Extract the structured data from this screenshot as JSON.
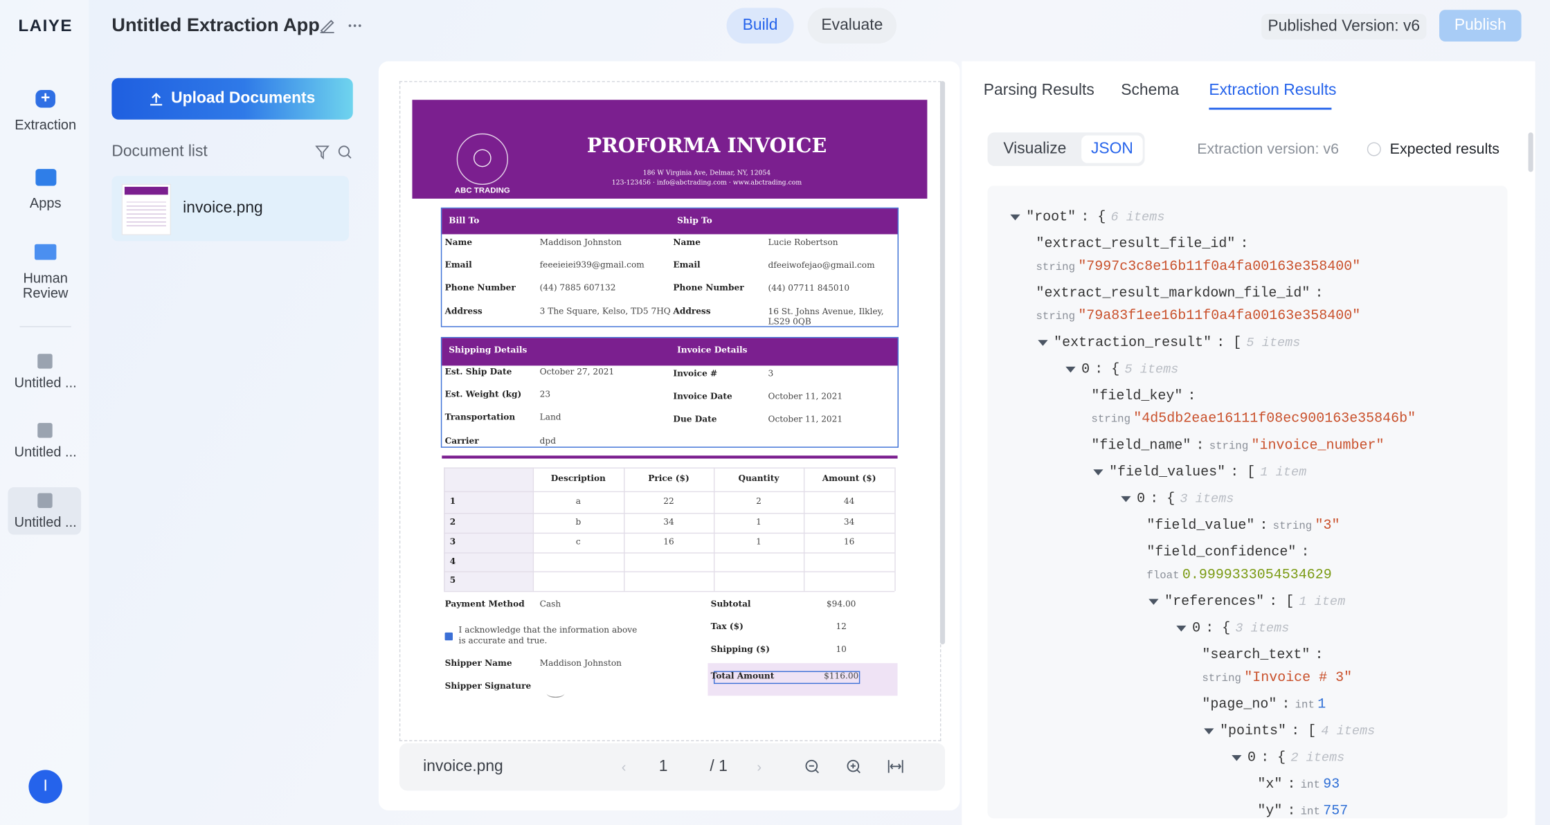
{
  "header": {
    "logo": "LAIYE",
    "app_title": "Untitled Extraction App",
    "tabs": [
      "Build",
      "Evaluate"
    ],
    "published_version": "Published Version: v6",
    "publish": "Publish"
  },
  "sidebar": {
    "items": [
      "Extraction",
      "Apps",
      "Human Review"
    ],
    "recent": [
      "Untitled ...",
      "Untitled ...",
      "Untitled ..."
    ],
    "avatar": "I"
  },
  "documents": {
    "upload": "Upload Documents",
    "list_title": "Document list",
    "files": [
      "invoice.png"
    ]
  },
  "viewer": {
    "file_name": "invoice.png",
    "page": "1",
    "total": "/ 1"
  },
  "invoice": {
    "company": "ABC TRADING",
    "title": "PROFORMA INVOICE",
    "address": "186 W Virginia Ave, Delmar, NY, 12054",
    "contact": "123-123456 · info@abctrading.com · www.abctrading.com",
    "bill_to": {
      "heading": "Bill To",
      "rows": [
        [
          "Name",
          "Maddison Johnston"
        ],
        [
          "Email",
          "feeeieiei939@gmail.com"
        ],
        [
          "Phone Number",
          "(44) 7885 607132"
        ],
        [
          "Address",
          "3 The Square, Kelso, TD5 7HQ"
        ]
      ]
    },
    "ship_to": {
      "heading": "Ship To",
      "rows": [
        [
          "Name",
          "Lucie Robertson"
        ],
        [
          "Email",
          "dfeeiwofejao@gmail.com"
        ],
        [
          "Phone Number",
          "(44) 07711 845010"
        ],
        [
          "Address",
          "16 St. Johns Avenue, Ilkley, LS29 0QB"
        ]
      ]
    },
    "shipping": {
      "heading": "Shipping Details",
      "rows": [
        [
          "Est. Ship Date",
          "October 27, 2021"
        ],
        [
          "Est. Weight (kg)",
          "23"
        ],
        [
          "Transportation",
          "Land"
        ],
        [
          "Carrier",
          "dpd"
        ]
      ]
    },
    "invoice_details": {
      "heading": "Invoice Details",
      "rows": [
        [
          "Invoice #",
          "3"
        ],
        [
          "Invoice Date",
          "October 11, 2021"
        ],
        [
          "Due Date",
          "October 11, 2021"
        ]
      ]
    },
    "items": {
      "columns": [
        "Description",
        "Price ($)",
        "Quantity",
        "Amount ($)"
      ],
      "rows": [
        [
          "1",
          "a",
          "22",
          "2",
          "44"
        ],
        [
          "2",
          "b",
          "34",
          "1",
          "34"
        ],
        [
          "3",
          "c",
          "16",
          "1",
          "16"
        ],
        [
          "4"
        ],
        [
          "5"
        ]
      ]
    },
    "bottom_left": [
      [
        "Payment Method",
        "Cash"
      ],
      [
        "Shipper Name",
        "Maddison Johnston"
      ],
      [
        "Shipper Signature"
      ]
    ],
    "acknowledge": "I acknowledge that the information above is accurate and true.",
    "totals": [
      [
        "Subtotal",
        "$94.00"
      ],
      [
        "Tax ($)",
        "12"
      ],
      [
        "Shipping ($)",
        "10"
      ],
      [
        "Total Amount",
        "$116.00"
      ]
    ]
  },
  "results": {
    "tabs": [
      "Parsing Results",
      "Schema",
      "Extraction Results"
    ],
    "view_modes": [
      "Visualize",
      "JSON"
    ],
    "version": "Extraction version: v6",
    "expected": "Expected results",
    "json_lines": [
      {
        "key": "\"root\"",
        "sep": ": {",
        "note": "6 items"
      },
      {
        "key": "\"extract_result_file_id\"",
        "sep": ":"
      },
      {
        "type": "string",
        "value": "\"7997c3c8e16b11f0a4fa00163e358400\""
      },
      {
        "key": "\"extract_result_markdown_file_id\"",
        "sep": ":"
      },
      {
        "type": "string",
        "value": "\"79a83f1ee16b11f0a4fa00163e358400\""
      },
      {
        "key": "\"extraction_result\"",
        "sep": ": [",
        "note": "5 items"
      },
      {
        "key": "0",
        "sep": ": {",
        "note": "5 items"
      },
      {
        "key": "\"field_key\"",
        "sep": ":"
      },
      {
        "type": "string",
        "value": "\"4d5db2eae16111f08ec900163e35846b\""
      },
      {
        "key": "\"field_name\"",
        "sep": ":",
        "type": "string",
        "value": "\"invoice_number\""
      },
      {
        "key": "\"field_values\"",
        "sep": ": [",
        "note": "1 item"
      },
      {
        "key": "0",
        "sep": ": {",
        "note": "3 items"
      },
      {
        "key": "\"field_value\"",
        "sep": ":",
        "type": "string",
        "value": "\"3\""
      },
      {
        "key": "\"field_confidence\"",
        "sep": ":"
      },
      {
        "type": "float",
        "value": "0.9999333054534629"
      },
      {
        "key": "\"references\"",
        "sep": ": [",
        "note": "1 item"
      },
      {
        "key": "0",
        "sep": ": {",
        "note": "3 items"
      },
      {
        "key": "\"search_text\"",
        "sep": ":"
      },
      {
        "type": "string",
        "value": "\"Invoice # 3\""
      },
      {
        "key": "\"page_no\"",
        "sep": ":",
        "type": "int",
        "value": "1"
      },
      {
        "key": "\"points\"",
        "sep": ": [",
        "note": "4 items"
      },
      {
        "key": "0",
        "sep": ": {",
        "note": "2 items"
      },
      {
        "key": "\"x\"",
        "sep": ":",
        "type": "int",
        "value": "93"
      },
      {
        "key": "\"y\"",
        "sep": ":",
        "type": "int",
        "value": "757"
      }
    ]
  }
}
